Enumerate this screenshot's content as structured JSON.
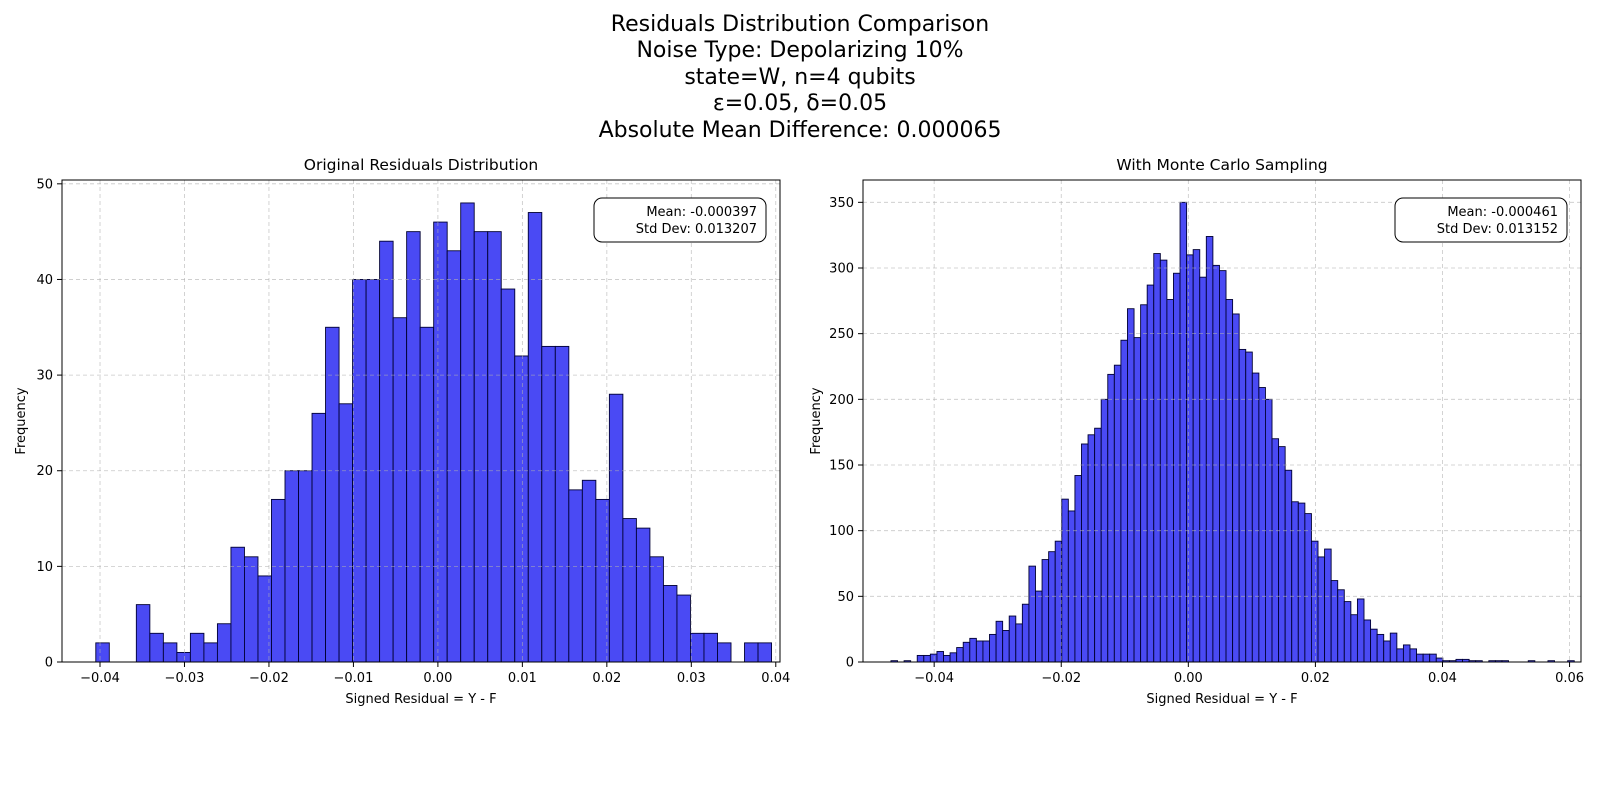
{
  "figure": {
    "suptitle_lines": [
      "Residuals Distribution Comparison",
      "Noise Type: Depolarizing 10%",
      "state=W, n=4 qubits",
      "ε=0.05, δ=0.05",
      "Absolute Mean Difference: 0.000065"
    ],
    "bar_color": "#4a4af4",
    "edge_color": "#000033"
  },
  "chart_data": [
    {
      "type": "bar",
      "title": "Original Residuals Distribution",
      "xlabel": "Signed Residual = Y - F",
      "ylabel": "Frequency",
      "xlim": [
        -0.0445,
        0.0405
      ],
      "ylim": [
        0,
        50.4
      ],
      "xticks": [
        -0.04,
        -0.03,
        -0.02,
        -0.01,
        0.0,
        0.01,
        0.02,
        0.03,
        0.04
      ],
      "xtick_labels": [
        "−0.04",
        "−0.03",
        "−0.02",
        "−0.01",
        "0.00",
        "0.01",
        "0.02",
        "0.03",
        "0.04"
      ],
      "yticks": [
        0,
        10,
        20,
        30,
        40,
        50
      ],
      "ytick_labels": [
        "0",
        "10",
        "20",
        "30",
        "40",
        "50"
      ],
      "grid": true,
      "bin_start": -0.0405,
      "bin_width": 0.0016,
      "values": [
        2,
        0,
        0,
        6,
        3,
        2,
        1,
        3,
        2,
        4,
        12,
        11,
        9,
        17,
        20,
        20,
        26,
        35,
        27,
        40,
        40,
        44,
        36,
        45,
        35,
        46,
        43,
        48,
        45,
        45,
        39,
        32,
        47,
        33,
        33,
        18,
        19,
        17,
        28,
        15,
        14,
        11,
        8,
        7,
        3,
        3,
        2,
        0,
        2,
        2
      ],
      "stats_box": {
        "mean": "Mean: -0.000397",
        "std": "Std Dev: 0.013207",
        "placement": "top-right"
      }
    },
    {
      "type": "bar",
      "title": "With Monte Carlo Sampling",
      "xlabel": "Signed Residual = Y - F",
      "ylabel": "Frequency",
      "xlim": [
        -0.0512,
        0.0618
      ],
      "ylim": [
        0,
        367
      ],
      "xticks": [
        -0.04,
        -0.02,
        0.0,
        0.02,
        0.04,
        0.06
      ],
      "xtick_labels": [
        "−0.04",
        "−0.02",
        "0.00",
        "0.02",
        "0.04",
        "0.06"
      ],
      "yticks": [
        0,
        50,
        100,
        150,
        200,
        250,
        300,
        350
      ],
      "ytick_labels": [
        "0",
        "50",
        "100",
        "150",
        "200",
        "250",
        "300",
        "350"
      ],
      "grid": true,
      "bin_start": -0.0468,
      "bin_width": 0.001034,
      "values": [
        1,
        0,
        1,
        0,
        5,
        5,
        6,
        8,
        5,
        7,
        11,
        15,
        18,
        16,
        16,
        21,
        31,
        24,
        35,
        29,
        44,
        73,
        54,
        78,
        84,
        92,
        124,
        115,
        142,
        166,
        173,
        178,
        200,
        219,
        226,
        245,
        269,
        247,
        272,
        287,
        311,
        306,
        276,
        296,
        350,
        310,
        314,
        293,
        324,
        302,
        298,
        276,
        265,
        238,
        236,
        220,
        209,
        200,
        170,
        164,
        146,
        122,
        121,
        113,
        92,
        80,
        86,
        62,
        55,
        46,
        36,
        48,
        32,
        25,
        21,
        16,
        22,
        10,
        13,
        10,
        6,
        6,
        6,
        3,
        1,
        1,
        2,
        2,
        1,
        1,
        0,
        1,
        1,
        1,
        0,
        0,
        0,
        1,
        0,
        0,
        1,
        0,
        0,
        1,
        0,
        0,
        0,
        0,
        1,
        0,
        0,
        0,
        0,
        0,
        0,
        0,
        0,
        0,
        0,
        0
      ],
      "stats_box": {
        "mean": "Mean: -0.000461",
        "std": "Std Dev: 0.013152",
        "placement": "top-right"
      }
    }
  ]
}
